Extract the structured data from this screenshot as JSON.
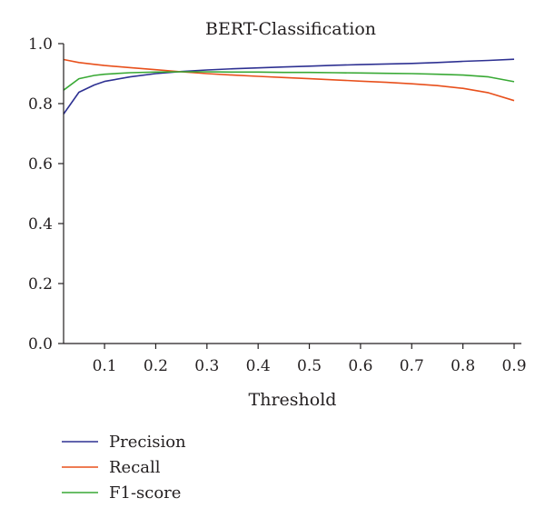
{
  "chart_data": {
    "type": "line",
    "title": "BERT-Classification",
    "xlabel": "Threshold",
    "ylabel": "",
    "xlim": [
      0.02,
      0.9
    ],
    "ylim": [
      0.0,
      1.0
    ],
    "x_ticks": [
      0.1,
      0.2,
      0.3,
      0.4,
      0.5,
      0.6,
      0.7,
      0.8,
      0.9
    ],
    "y_ticks": [
      0.0,
      0.2,
      0.4,
      0.6,
      0.8,
      1.0
    ],
    "x_tick_labels": [
      "0.1",
      "0.2",
      "0.3",
      "0.4",
      "0.5",
      "0.6",
      "0.7",
      "0.8",
      "0.9"
    ],
    "y_tick_labels": [
      "0.0",
      "0.2",
      "0.4",
      "0.6",
      "0.8",
      "1.0"
    ],
    "grid": false,
    "legend_position": "bottom-left",
    "x": [
      0.02,
      0.05,
      0.08,
      0.1,
      0.15,
      0.2,
      0.25,
      0.3,
      0.35,
      0.4,
      0.45,
      0.5,
      0.55,
      0.6,
      0.65,
      0.7,
      0.75,
      0.8,
      0.85,
      0.9
    ],
    "series": [
      {
        "name": "Precision",
        "color": "#2e3192",
        "values": [
          0.765,
          0.838,
          0.862,
          0.874,
          0.889,
          0.9,
          0.907,
          0.912,
          0.916,
          0.919,
          0.922,
          0.925,
          0.928,
          0.93,
          0.932,
          0.934,
          0.937,
          0.941,
          0.944,
          0.948
        ]
      },
      {
        "name": "Recall",
        "color": "#e8501c",
        "values": [
          0.947,
          0.937,
          0.931,
          0.927,
          0.92,
          0.913,
          0.906,
          0.9,
          0.895,
          0.891,
          0.887,
          0.883,
          0.879,
          0.875,
          0.871,
          0.866,
          0.86,
          0.851,
          0.836,
          0.81
        ]
      },
      {
        "name": "F1-score",
        "color": "#39a935",
        "values": [
          0.845,
          0.883,
          0.894,
          0.898,
          0.903,
          0.905,
          0.906,
          0.906,
          0.905,
          0.905,
          0.904,
          0.904,
          0.903,
          0.902,
          0.901,
          0.9,
          0.898,
          0.895,
          0.889,
          0.873
        ]
      }
    ]
  }
}
